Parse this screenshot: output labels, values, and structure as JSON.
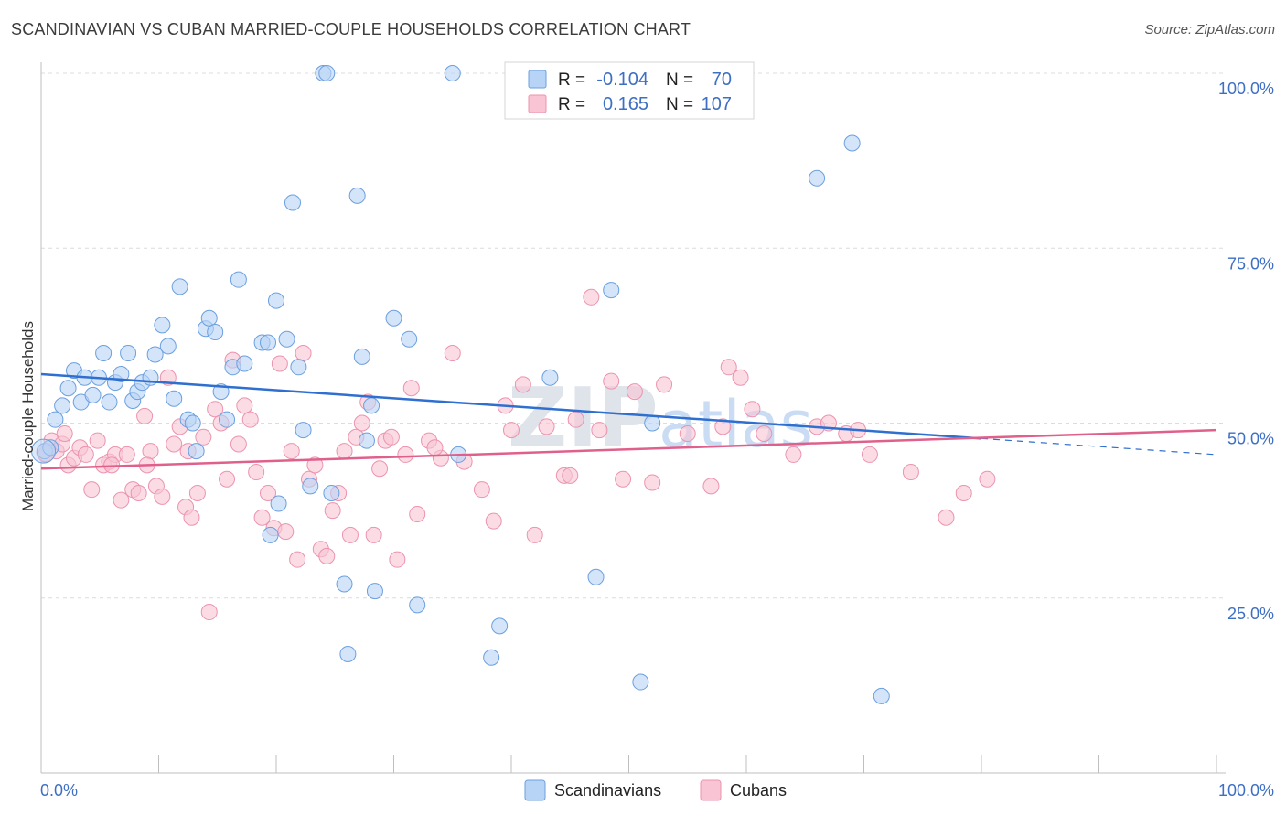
{
  "header": {
    "title": "SCANDINAVIAN VS CUBAN MARRIED-COUPLE HOUSEHOLDS CORRELATION CHART",
    "source": "Source: ZipAtlas.com"
  },
  "legend": {
    "r_label": "R =",
    "n_label": "N =",
    "rows": [
      {
        "r": "-0.104",
        "n": "70",
        "fill": "#b7d3f5",
        "stroke": "#6b9fe0"
      },
      {
        "r": "0.165",
        "n": "107",
        "fill": "#f9c4d3",
        "stroke": "#ec93ae"
      }
    ]
  },
  "bottom_legend": [
    {
      "label": "Scandinavians",
      "fill": "#b7d3f5",
      "stroke": "#6b9fe0"
    },
    {
      "label": "Cubans",
      "fill": "#f9c4d3",
      "stroke": "#ec93ae"
    }
  ],
  "watermark": {
    "zip": "ZIP",
    "atlas": "atlas"
  },
  "chart_data": {
    "type": "scatter",
    "ylabel": "Married-couple Households",
    "xlim": [
      0,
      100
    ],
    "ylim": [
      0,
      100
    ],
    "x_tick_labels": [
      "0.0%",
      "100.0%"
    ],
    "y_tick_labels": [
      {
        "value": 100,
        "label": "100.0%"
      },
      {
        "value": 75,
        "label": "75.0%"
      },
      {
        "value": 50,
        "label": "50.0%"
      },
      {
        "value": 25,
        "label": "25.0%"
      }
    ],
    "grid": "horizontal dashed",
    "series": [
      {
        "name": "Scandinavians",
        "color": "#6b9fe0",
        "fill": "#b7d3f5",
        "trend": {
          "x0": 0,
          "y0": 57.0,
          "x1": 80,
          "y1": 47.8,
          "dash_to": 100,
          "dash_y": 45.5
        },
        "points": [
          [
            0.3,
            46.0
          ],
          [
            1.2,
            50.5
          ],
          [
            1.8,
            52.5
          ],
          [
            2.3,
            55.0
          ],
          [
            2.8,
            57.5
          ],
          [
            3.4,
            53.0
          ],
          [
            3.7,
            56.5
          ],
          [
            4.4,
            54.0
          ],
          [
            4.9,
            56.5
          ],
          [
            5.3,
            60.0
          ],
          [
            5.8,
            53.0
          ],
          [
            6.3,
            55.8
          ],
          [
            6.8,
            57.0
          ],
          [
            7.4,
            60.0
          ],
          [
            7.8,
            53.2
          ],
          [
            8.2,
            54.5
          ],
          [
            8.6,
            55.8
          ],
          [
            9.3,
            56.5
          ],
          [
            9.7,
            59.8
          ],
          [
            10.3,
            64.0
          ],
          [
            10.8,
            61.0
          ],
          [
            11.3,
            53.5
          ],
          [
            11.8,
            69.5
          ],
          [
            12.5,
            50.5
          ],
          [
            12.9,
            50.0
          ],
          [
            13.2,
            46.0
          ],
          [
            14.0,
            63.5
          ],
          [
            14.3,
            65.0
          ],
          [
            14.8,
            63.0
          ],
          [
            15.3,
            54.5
          ],
          [
            15.8,
            50.5
          ],
          [
            16.3,
            58.0
          ],
          [
            16.8,
            70.5
          ],
          [
            17.3,
            58.5
          ],
          [
            18.8,
            61.5
          ],
          [
            19.3,
            61.5
          ],
          [
            19.5,
            34.0
          ],
          [
            20.0,
            67.5
          ],
          [
            20.2,
            38.5
          ],
          [
            20.9,
            62.0
          ],
          [
            21.4,
            81.5
          ],
          [
            21.9,
            58.0
          ],
          [
            22.3,
            49.0
          ],
          [
            22.9,
            41.0
          ],
          [
            24.0,
            100.0
          ],
          [
            24.3,
            100.0
          ],
          [
            24.7,
            40.0
          ],
          [
            25.8,
            27.0
          ],
          [
            26.1,
            17.0
          ],
          [
            26.9,
            82.5
          ],
          [
            27.3,
            59.5
          ],
          [
            27.7,
            47.5
          ],
          [
            28.1,
            52.5
          ],
          [
            28.4,
            26.0
          ],
          [
            30.0,
            65.0
          ],
          [
            31.3,
            62.0
          ],
          [
            32.0,
            24.0
          ],
          [
            35.0,
            100.0
          ],
          [
            35.5,
            45.5
          ],
          [
            39.0,
            21.0
          ],
          [
            38.3,
            16.5
          ],
          [
            43.3,
            56.5
          ],
          [
            47.2,
            28.0
          ],
          [
            48.5,
            69.0
          ],
          [
            51.0,
            13.0
          ],
          [
            52.0,
            50.0
          ],
          [
            66.0,
            85.0
          ],
          [
            69.0,
            90.0
          ],
          [
            71.5,
            11.0
          ],
          [
            0.8,
            46.5
          ]
        ]
      },
      {
        "name": "Cubans",
        "color": "#ec93ae",
        "fill": "#f9c4d3",
        "trend": {
          "x0": 0,
          "y0": 43.5,
          "x1": 100,
          "y1": 49.0
        },
        "points": [
          [
            0.4,
            45.5
          ],
          [
            0.9,
            47.5
          ],
          [
            1.3,
            46.0
          ],
          [
            1.8,
            47.0
          ],
          [
            2.3,
            44.0
          ],
          [
            2.8,
            45.0
          ],
          [
            3.3,
            46.5
          ],
          [
            3.8,
            45.5
          ],
          [
            4.3,
            40.5
          ],
          [
            4.8,
            47.5
          ],
          [
            5.3,
            44.0
          ],
          [
            5.8,
            44.5
          ],
          [
            6.3,
            45.5
          ],
          [
            6.8,
            39.0
          ],
          [
            7.3,
            45.5
          ],
          [
            7.8,
            40.5
          ],
          [
            8.3,
            40.0
          ],
          [
            8.8,
            51.0
          ],
          [
            9.3,
            46.0
          ],
          [
            9.8,
            41.0
          ],
          [
            10.3,
            39.5
          ],
          [
            10.8,
            56.5
          ],
          [
            11.3,
            47.0
          ],
          [
            11.8,
            49.5
          ],
          [
            12.3,
            38.0
          ],
          [
            12.8,
            36.5
          ],
          [
            13.3,
            40.0
          ],
          [
            13.8,
            48.0
          ],
          [
            14.3,
            23.0
          ],
          [
            14.8,
            52.0
          ],
          [
            15.3,
            50.0
          ],
          [
            15.8,
            42.0
          ],
          [
            16.3,
            59.0
          ],
          [
            16.8,
            47.0
          ],
          [
            17.3,
            52.5
          ],
          [
            17.8,
            50.5
          ],
          [
            18.3,
            43.0
          ],
          [
            18.8,
            36.5
          ],
          [
            19.3,
            40.0
          ],
          [
            19.8,
            35.0
          ],
          [
            20.3,
            58.5
          ],
          [
            20.8,
            34.5
          ],
          [
            21.3,
            46.0
          ],
          [
            21.8,
            30.5
          ],
          [
            22.3,
            60.0
          ],
          [
            22.8,
            42.0
          ],
          [
            23.3,
            44.0
          ],
          [
            23.8,
            32.0
          ],
          [
            24.3,
            31.0
          ],
          [
            24.8,
            37.5
          ],
          [
            25.3,
            40.0
          ],
          [
            25.8,
            46.0
          ],
          [
            26.3,
            34.0
          ],
          [
            26.8,
            48.0
          ],
          [
            27.3,
            50.0
          ],
          [
            27.8,
            53.0
          ],
          [
            28.3,
            34.0
          ],
          [
            28.8,
            43.5
          ],
          [
            29.3,
            47.5
          ],
          [
            29.8,
            48.0
          ],
          [
            30.3,
            30.5
          ],
          [
            31.5,
            55.0
          ],
          [
            32.0,
            37.0
          ],
          [
            33.0,
            47.5
          ],
          [
            34.0,
            45.0
          ],
          [
            35.0,
            60.0
          ],
          [
            36.0,
            44.5
          ],
          [
            37.5,
            40.5
          ],
          [
            38.5,
            36.0
          ],
          [
            39.5,
            52.5
          ],
          [
            40.0,
            49.0
          ],
          [
            41.0,
            55.5
          ],
          [
            42.0,
            34.0
          ],
          [
            43.0,
            49.5
          ],
          [
            44.5,
            42.5
          ],
          [
            45.5,
            50.5
          ],
          [
            46.8,
            68.0
          ],
          [
            47.5,
            49.0
          ],
          [
            48.5,
            56.0
          ],
          [
            49.5,
            42.0
          ],
          [
            50.5,
            54.5
          ],
          [
            52.0,
            41.5
          ],
          [
            53.0,
            55.5
          ],
          [
            55.0,
            48.5
          ],
          [
            57.0,
            41.0
          ],
          [
            58.5,
            58.0
          ],
          [
            59.5,
            56.5
          ],
          [
            60.5,
            52.0
          ],
          [
            61.5,
            48.5
          ],
          [
            64.0,
            45.5
          ],
          [
            66.0,
            49.5
          ],
          [
            67.0,
            50.0
          ],
          [
            68.5,
            48.5
          ],
          [
            69.5,
            49.0
          ],
          [
            70.5,
            45.5
          ],
          [
            74.0,
            43.0
          ],
          [
            77.0,
            36.5
          ],
          [
            78.5,
            40.0
          ],
          [
            80.5,
            42.0
          ],
          [
            33.5,
            46.5
          ],
          [
            12.5,
            46.0
          ],
          [
            2.0,
            48.5
          ],
          [
            6.0,
            44.0
          ],
          [
            9.0,
            44.0
          ],
          [
            31.0,
            45.5
          ],
          [
            58.0,
            49.5
          ],
          [
            45.0,
            42.5
          ]
        ]
      }
    ]
  }
}
